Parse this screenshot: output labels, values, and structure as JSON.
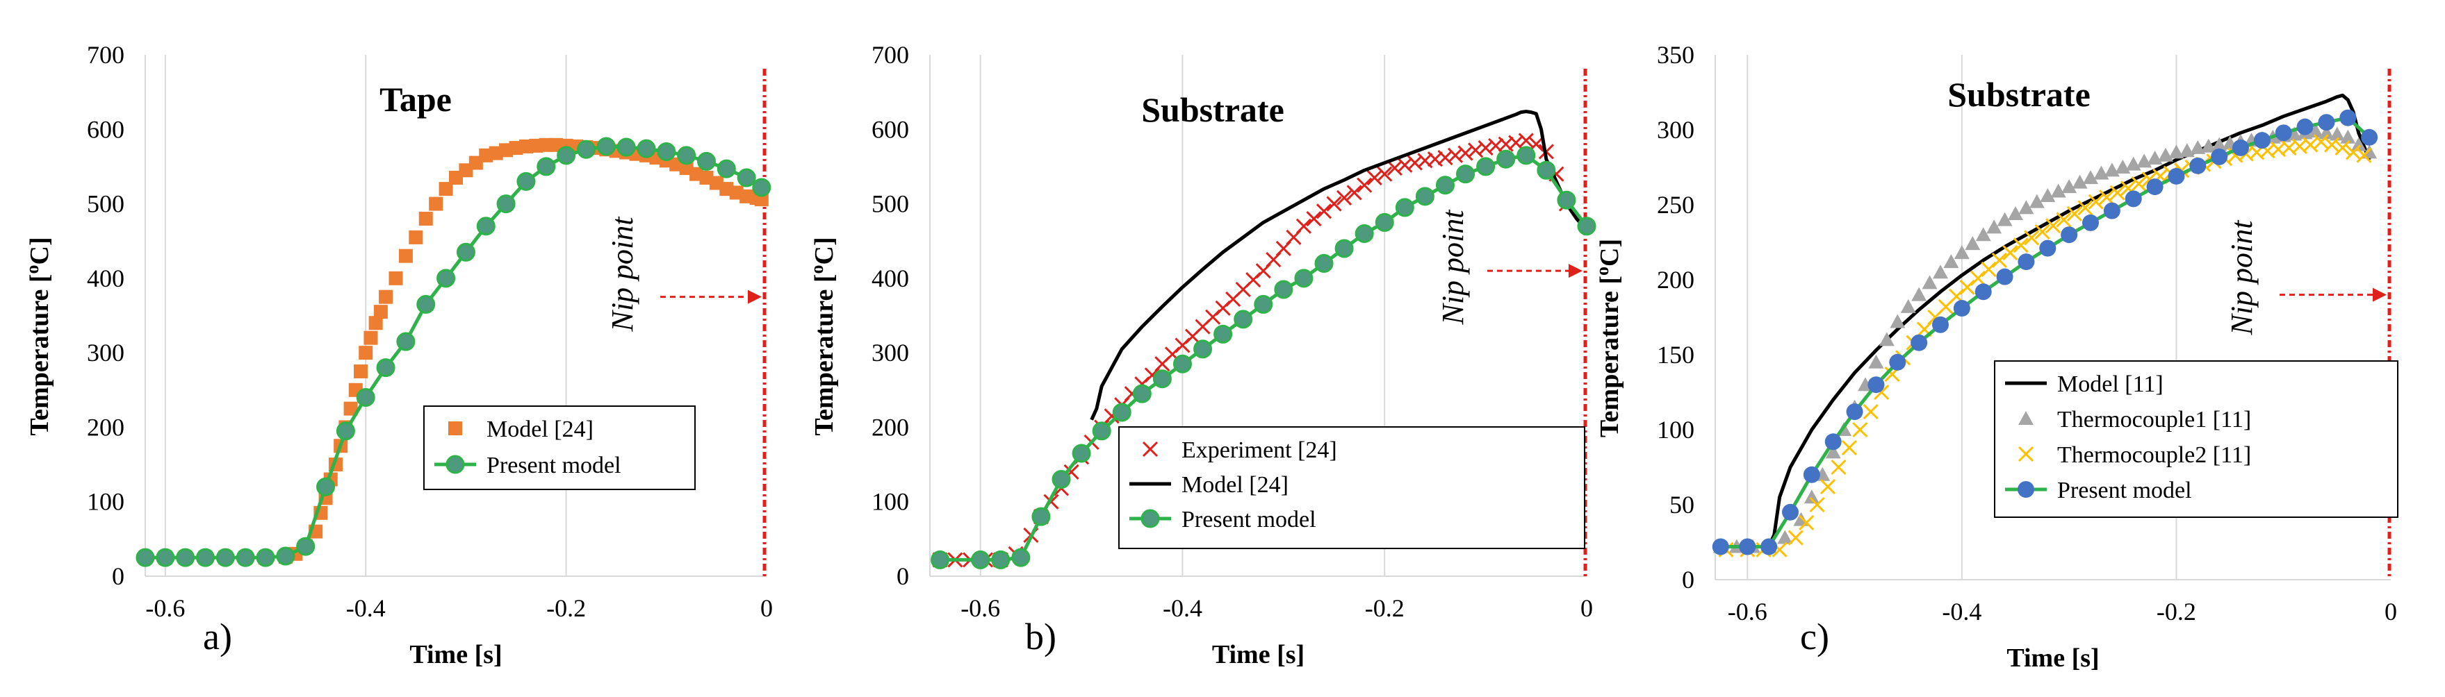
{
  "colors": {
    "orange": "#ED7D31",
    "green_line": "#2EB24A",
    "teal_marker": "#4E9A7F",
    "blue_marker": "#4472C4",
    "red": "#E0201B",
    "black": "#000000",
    "grey": "#A5A5A5",
    "yellow": "#FFC000",
    "grid": "#D9D9D9"
  },
  "chart_data": [
    {
      "id": "a",
      "type": "scatter",
      "panel_label": "a)",
      "title": "Tape",
      "xlabel": "Time [s]",
      "ylabel": "Temperature [",
      "ylabel_sup": "o",
      "ylabel_tail": "C]",
      "xlim": [
        -0.62,
        0.0
      ],
      "ylim": [
        0,
        700
      ],
      "xticks": [
        -0.6,
        -0.4,
        -0.2,
        0
      ],
      "xtick_labels": [
        "-0.6",
        "-0.4",
        "-0.2",
        "0"
      ],
      "yticks": [
        0,
        100,
        200,
        300,
        400,
        500,
        600,
        700
      ],
      "ytick_labels": [
        "0",
        "100",
        "200",
        "300",
        "400",
        "500",
        "600",
        "700"
      ],
      "vgrid": true,
      "annotation": "Nip point",
      "arrow_y": 375,
      "series": [
        {
          "name": "Model [24]",
          "style": "square",
          "x": [
            -0.6,
            -0.58,
            -0.56,
            -0.54,
            -0.52,
            -0.5,
            -0.48,
            -0.47,
            -0.46,
            -0.45,
            -0.445,
            -0.44,
            -0.435,
            -0.43,
            -0.425,
            -0.42,
            -0.415,
            -0.41,
            -0.405,
            -0.4,
            -0.395,
            -0.39,
            -0.385,
            -0.38,
            -0.37,
            -0.36,
            -0.35,
            -0.34,
            -0.33,
            -0.32,
            -0.31,
            -0.3,
            -0.29,
            -0.28,
            -0.27,
            -0.26,
            -0.25,
            -0.24,
            -0.23,
            -0.22,
            -0.21,
            -0.2,
            -0.19,
            -0.18,
            -0.17,
            -0.16,
            -0.15,
            -0.14,
            -0.13,
            -0.12,
            -0.11,
            -0.1,
            -0.09,
            -0.08,
            -0.07,
            -0.06,
            -0.05,
            -0.04,
            -0.03,
            -0.02,
            -0.01,
            -0.005
          ],
          "y": [
            25,
            25,
            25,
            25,
            25,
            25,
            26,
            30,
            40,
            60,
            85,
            105,
            130,
            150,
            175,
            200,
            225,
            250,
            275,
            300,
            320,
            340,
            355,
            375,
            400,
            430,
            455,
            480,
            500,
            520,
            535,
            545,
            555,
            565,
            568,
            572,
            575,
            577,
            578,
            579,
            579,
            578,
            577,
            576,
            575,
            573,
            571,
            569,
            567,
            565,
            562,
            558,
            553,
            548,
            540,
            535,
            528,
            520,
            515,
            510,
            508,
            506
          ]
        },
        {
          "name": "Present model",
          "style": "line-circle",
          "x": [
            -0.62,
            -0.6,
            -0.58,
            -0.56,
            -0.54,
            -0.52,
            -0.5,
            -0.48,
            -0.46,
            -0.44,
            -0.42,
            -0.4,
            -0.38,
            -0.36,
            -0.34,
            -0.32,
            -0.3,
            -0.28,
            -0.26,
            -0.24,
            -0.22,
            -0.2,
            -0.18,
            -0.16,
            -0.14,
            -0.12,
            -0.1,
            -0.08,
            -0.06,
            -0.04,
            -0.02,
            -0.005
          ],
          "y": [
            25,
            25,
            25,
            25,
            25,
            25,
            25,
            27,
            40,
            120,
            195,
            240,
            280,
            315,
            365,
            400,
            435,
            470,
            500,
            530,
            550,
            565,
            573,
            577,
            576,
            574,
            570,
            565,
            557,
            547,
            535,
            522
          ]
        }
      ]
    },
    {
      "id": "b",
      "type": "scatter",
      "panel_label": "b)",
      "title": "Substrate",
      "xlabel": "Time [s]",
      "ylabel": "Temperature [",
      "ylabel_sup": "o",
      "ylabel_tail": "C]",
      "xlim": [
        -0.65,
        0.0
      ],
      "ylim": [
        0,
        700
      ],
      "xticks": [
        -0.6,
        -0.4,
        -0.2,
        0
      ],
      "xtick_labels": [
        "-0.6",
        "-0.4",
        "-0.2",
        "0"
      ],
      "yticks": [
        0,
        100,
        200,
        300,
        400,
        500,
        600,
        700
      ],
      "ytick_labels": [
        "0",
        "100",
        "200",
        "300",
        "400",
        "500",
        "600",
        "700"
      ],
      "vgrid": true,
      "annotation": "Nip point",
      "arrow_y": 410,
      "series": [
        {
          "name": "Experiment [24]",
          "style": "x",
          "x": [
            -0.64,
            -0.625,
            -0.61,
            -0.595,
            -0.58,
            -0.565,
            -0.55,
            -0.54,
            -0.53,
            -0.52,
            -0.51,
            -0.5,
            -0.49,
            -0.48,
            -0.47,
            -0.46,
            -0.45,
            -0.44,
            -0.43,
            -0.42,
            -0.41,
            -0.4,
            -0.39,
            -0.38,
            -0.37,
            -0.36,
            -0.35,
            -0.34,
            -0.33,
            -0.32,
            -0.31,
            -0.3,
            -0.29,
            -0.28,
            -0.27,
            -0.26,
            -0.25,
            -0.24,
            -0.23,
            -0.22,
            -0.21,
            -0.2,
            -0.19,
            -0.18,
            -0.17,
            -0.16,
            -0.15,
            -0.14,
            -0.13,
            -0.12,
            -0.11,
            -0.1,
            -0.09,
            -0.08,
            -0.07,
            -0.06,
            -0.05,
            -0.04,
            -0.03,
            -0.02
          ],
          "y": [
            22,
            22,
            22,
            22,
            22,
            30,
            55,
            80,
            100,
            118,
            140,
            160,
            180,
            200,
            215,
            230,
            245,
            258,
            270,
            285,
            298,
            310,
            322,
            335,
            348,
            360,
            372,
            385,
            398,
            410,
            425,
            440,
            455,
            470,
            480,
            490,
            500,
            508,
            515,
            525,
            535,
            540,
            548,
            552,
            555,
            558,
            560,
            562,
            565,
            568,
            572,
            575,
            578,
            580,
            582,
            585,
            580,
            570,
            540,
            500
          ]
        },
        {
          "name": "Model [24]",
          "style": "line",
          "x": [
            -0.49,
            -0.485,
            -0.48,
            -0.47,
            -0.46,
            -0.44,
            -0.42,
            -0.4,
            -0.38,
            -0.36,
            -0.34,
            -0.32,
            -0.3,
            -0.28,
            -0.26,
            -0.24,
            -0.22,
            -0.2,
            -0.18,
            -0.16,
            -0.14,
            -0.12,
            -0.1,
            -0.08,
            -0.07,
            -0.065,
            -0.06,
            -0.055,
            -0.05,
            -0.045,
            -0.04,
            -0.03,
            -0.02,
            -0.01,
            0.0
          ],
          "y": [
            210,
            225,
            255,
            280,
            305,
            335,
            362,
            388,
            412,
            435,
            455,
            475,
            490,
            505,
            520,
            532,
            545,
            555,
            565,
            575,
            585,
            595,
            605,
            615,
            620,
            623,
            624,
            623,
            621,
            600,
            560,
            530,
            500,
            480,
            465
          ]
        },
        {
          "name": "Present model",
          "style": "line-circle",
          "x": [
            -0.64,
            -0.6,
            -0.58,
            -0.56,
            -0.54,
            -0.52,
            -0.5,
            -0.48,
            -0.46,
            -0.44,
            -0.42,
            -0.4,
            -0.38,
            -0.36,
            -0.34,
            -0.32,
            -0.3,
            -0.28,
            -0.26,
            -0.24,
            -0.22,
            -0.2,
            -0.18,
            -0.16,
            -0.14,
            -0.12,
            -0.1,
            -0.08,
            -0.06,
            -0.04,
            -0.02,
            0.0
          ],
          "y": [
            22,
            22,
            22,
            25,
            80,
            130,
            165,
            195,
            220,
            245,
            265,
            285,
            305,
            325,
            345,
            365,
            385,
            400,
            420,
            440,
            460,
            475,
            495,
            510,
            525,
            540,
            550,
            560,
            565,
            545,
            505,
            470
          ]
        }
      ]
    },
    {
      "id": "c",
      "type": "scatter",
      "panel_label": "c)",
      "title": "Substrate",
      "xlabel": "Time [s]",
      "ylabel": "Temperature [",
      "ylabel_sup": "o",
      "ylabel_tail": "C]",
      "xlim": [
        -0.63,
        0.0
      ],
      "ylim": [
        0,
        350
      ],
      "xticks": [
        -0.6,
        -0.4,
        -0.2,
        0
      ],
      "xtick_labels": [
        "-0.6",
        "-0.4",
        "-0.2",
        "0"
      ],
      "yticks": [
        0,
        50,
        100,
        150,
        200,
        250,
        300,
        350
      ],
      "ytick_labels": [
        "0",
        "50",
        "100",
        "150",
        "200",
        "250",
        "300",
        "350"
      ],
      "vgrid": true,
      "annotation": "Nip point",
      "arrow_y": 190,
      "series": [
        {
          "name": "Model [11]",
          "style": "line",
          "x": [
            -0.625,
            -0.6,
            -0.58,
            -0.575,
            -0.57,
            -0.56,
            -0.54,
            -0.52,
            -0.5,
            -0.48,
            -0.46,
            -0.44,
            -0.42,
            -0.4,
            -0.38,
            -0.36,
            -0.34,
            -0.32,
            -0.3,
            -0.28,
            -0.26,
            -0.24,
            -0.22,
            -0.2,
            -0.18,
            -0.16,
            -0.14,
            -0.12,
            -0.1,
            -0.08,
            -0.06,
            -0.05,
            -0.045,
            -0.04,
            -0.035,
            -0.03,
            -0.02
          ],
          "y": [
            22,
            22,
            22,
            30,
            55,
            75,
            100,
            120,
            138,
            153,
            167,
            180,
            192,
            203,
            213,
            222,
            230,
            238,
            246,
            253,
            260,
            267,
            273,
            280,
            286,
            292,
            298,
            303,
            309,
            314,
            319,
            322,
            323,
            320,
            312,
            298,
            280
          ]
        },
        {
          "name": "Thermocouple1 [11]",
          "style": "triangle",
          "x": [
            -0.625,
            -0.61,
            -0.595,
            -0.58,
            -0.565,
            -0.55,
            -0.54,
            -0.53,
            -0.52,
            -0.51,
            -0.5,
            -0.49,
            -0.48,
            -0.47,
            -0.46,
            -0.45,
            -0.44,
            -0.43,
            -0.42,
            -0.41,
            -0.4,
            -0.39,
            -0.38,
            -0.37,
            -0.36,
            -0.35,
            -0.34,
            -0.33,
            -0.32,
            -0.31,
            -0.3,
            -0.29,
            -0.28,
            -0.27,
            -0.26,
            -0.25,
            -0.24,
            -0.23,
            -0.22,
            -0.21,
            -0.2,
            -0.19,
            -0.18,
            -0.17,
            -0.16,
            -0.15,
            -0.14,
            -0.13,
            -0.12,
            -0.11,
            -0.1,
            -0.09,
            -0.08,
            -0.07,
            -0.06,
            -0.05,
            -0.04,
            -0.03,
            -0.02
          ],
          "y": [
            22,
            22,
            22,
            22,
            28,
            40,
            55,
            70,
            85,
            100,
            115,
            130,
            145,
            160,
            172,
            182,
            190,
            198,
            205,
            212,
            218,
            224,
            230,
            235,
            240,
            244,
            248,
            252,
            256,
            259,
            262,
            265,
            268,
            271,
            273,
            275,
            277,
            279,
            281,
            283,
            285,
            286,
            288,
            289,
            290,
            291,
            292,
            293,
            294,
            295,
            296,
            297,
            298,
            299,
            298,
            297,
            295,
            290,
            285
          ]
        },
        {
          "name": "Thermocouple2 [11]",
          "style": "x",
          "x": [
            -0.62,
            -0.6,
            -0.585,
            -0.57,
            -0.555,
            -0.545,
            -0.535,
            -0.525,
            -0.515,
            -0.505,
            -0.495,
            -0.485,
            -0.475,
            -0.465,
            -0.455,
            -0.445,
            -0.435,
            -0.425,
            -0.415,
            -0.405,
            -0.395,
            -0.385,
            -0.375,
            -0.365,
            -0.355,
            -0.345,
            -0.335,
            -0.325,
            -0.315,
            -0.305,
            -0.295,
            -0.285,
            -0.275,
            -0.265,
            -0.255,
            -0.245,
            -0.235,
            -0.225,
            -0.215,
            -0.205,
            -0.195,
            -0.185,
            -0.175,
            -0.165,
            -0.155,
            -0.145,
            -0.135,
            -0.125,
            -0.115,
            -0.105,
            -0.095,
            -0.085,
            -0.075,
            -0.065,
            -0.055,
            -0.045,
            -0.035,
            -0.025
          ],
          "y": [
            20,
            20,
            20,
            20,
            28,
            38,
            50,
            62,
            75,
            88,
            100,
            112,
            125,
            137,
            148,
            158,
            167,
            175,
            182,
            189,
            195,
            201,
            207,
            213,
            218,
            223,
            228,
            232,
            236,
            240,
            244,
            248,
            252,
            255,
            258,
            261,
            264,
            267,
            269,
            271,
            273,
            275,
            277,
            279,
            281,
            283,
            284,
            285,
            286,
            287,
            288,
            289,
            290,
            292,
            290,
            288,
            285,
            283
          ]
        },
        {
          "name": "Present model",
          "style": "line-circle",
          "x": [
            -0.625,
            -0.6,
            -0.58,
            -0.56,
            -0.54,
            -0.52,
            -0.5,
            -0.48,
            -0.46,
            -0.44,
            -0.42,
            -0.4,
            -0.38,
            -0.36,
            -0.34,
            -0.32,
            -0.3,
            -0.28,
            -0.26,
            -0.24,
            -0.22,
            -0.2,
            -0.18,
            -0.16,
            -0.14,
            -0.12,
            -0.1,
            -0.08,
            -0.06,
            -0.04,
            -0.02
          ],
          "y": [
            22,
            22,
            22,
            45,
            70,
            92,
            112,
            130,
            145,
            158,
            170,
            181,
            192,
            202,
            212,
            221,
            230,
            238,
            246,
            254,
            262,
            269,
            276,
            282,
            288,
            293,
            298,
            302,
            305,
            308,
            295
          ]
        }
      ]
    }
  ]
}
